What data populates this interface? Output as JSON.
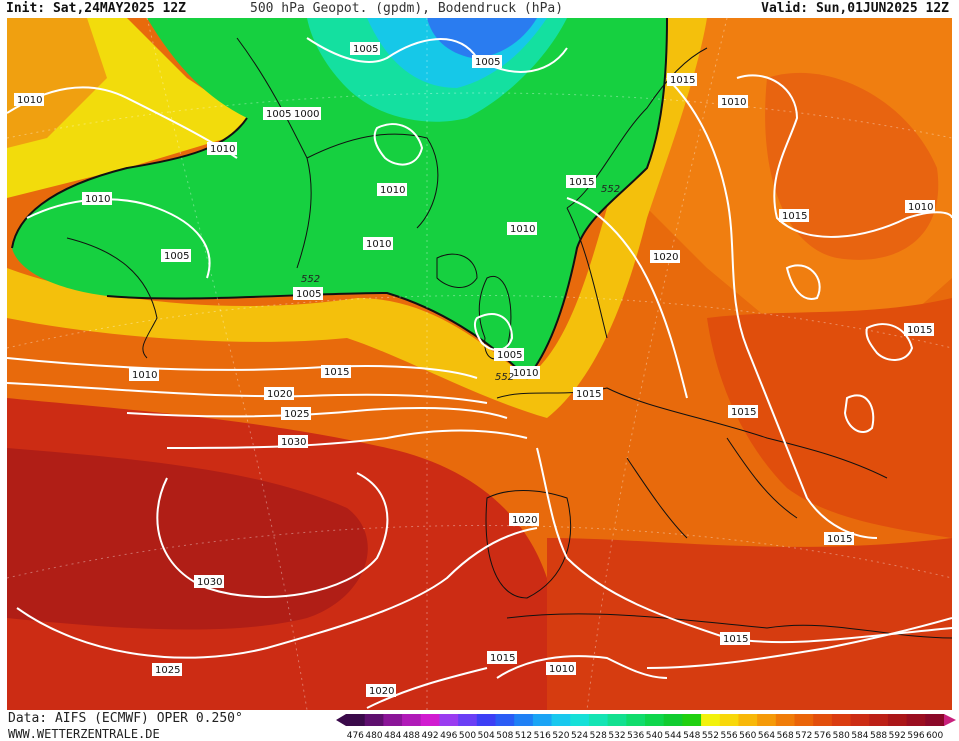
{
  "header": {
    "init": "Init: Sat,24MAY2025 12Z",
    "title": "500 hPa Geopot. (gpdm), Bodendruck (hPa)",
    "valid": "Valid: Sun,01JUN2025 12Z"
  },
  "footer": {
    "source": "Data: AIFS (ECMWF) OPER 0.250°",
    "site": "WWW.WETTERZENTRALE.DE"
  },
  "scale": {
    "labels": [
      "476",
      "480",
      "484",
      "488",
      "492",
      "496",
      "500",
      "504",
      "508",
      "512",
      "516",
      "520",
      "524",
      "528",
      "532",
      "536",
      "540",
      "544",
      "548",
      "552",
      "556",
      "560",
      "564",
      "568",
      "572",
      "576",
      "580",
      "584",
      "588",
      "592",
      "596",
      "600"
    ],
    "colors": [
      "#3a0a4a",
      "#5e0f6e",
      "#8a1598",
      "#b01ab8",
      "#d11bd0",
      "#9a3cf0",
      "#6a3ef5",
      "#3c3ef5",
      "#2a5cf5",
      "#1f80f5",
      "#1aa4f5",
      "#18c8ee",
      "#16e0d8",
      "#14e4b4",
      "#12e090",
      "#10dc6c",
      "#0ed64c",
      "#10cc30",
      "#20d010",
      "#f2f20c",
      "#f8d80a",
      "#f8b808",
      "#f59a08",
      "#f07c08",
      "#ea6408",
      "#e24e0c",
      "#da3c10",
      "#cc2c14",
      "#bc2016",
      "#aa1618",
      "#9a0e20",
      "#8a0828"
    ]
  },
  "isobars": [
    {
      "label": "1005",
      "pos": "top-left-greenland"
    },
    {
      "label": "1005",
      "pos": "top-center"
    },
    {
      "label": "1015",
      "pos": "norway-north"
    },
    {
      "label": "1010",
      "pos": "scandinavia-east"
    },
    {
      "label": "1010",
      "pos": "west-atlantic"
    },
    {
      "label": "1005",
      "pos": "greenland-south"
    },
    {
      "label": "1000",
      "pos": "greenland-south"
    },
    {
      "label": "1010",
      "pos": "greenland-west"
    },
    {
      "label": "1010",
      "pos": "iceland"
    },
    {
      "label": "1015",
      "pos": "norway-coast"
    },
    {
      "label": "1015",
      "pos": "russia-north"
    },
    {
      "label": "1010",
      "pos": "russia-northeast"
    },
    {
      "label": "1010",
      "pos": "labrador"
    },
    {
      "label": "1005",
      "pos": "labrador-south"
    },
    {
      "label": "1010",
      "pos": "north-sea"
    },
    {
      "label": "1010",
      "pos": "iceland-south"
    },
    {
      "label": "1020",
      "pos": "baltic"
    },
    {
      "label": "1005",
      "pos": "atlantic-west"
    },
    {
      "label": "1015",
      "pos": "caspian"
    },
    {
      "label": "1005",
      "pos": "british-isles"
    },
    {
      "label": "1010",
      "pos": "denmark"
    },
    {
      "label": "1010",
      "pos": "atlantic"
    },
    {
      "label": "1015",
      "pos": "atlantic"
    },
    {
      "label": "1015",
      "pos": "benelux"
    },
    {
      "label": "1020",
      "pos": "atlantic"
    },
    {
      "label": "1025",
      "pos": "atlantic"
    },
    {
      "label": "1015",
      "pos": "balkans"
    },
    {
      "label": "1030",
      "pos": "azores"
    },
    {
      "label": "1020",
      "pos": "iberia-north"
    },
    {
      "label": "1015",
      "pos": "turkey"
    },
    {
      "label": "1030",
      "pos": "azores-south"
    },
    {
      "label": "1015",
      "pos": "mediterranean-east"
    },
    {
      "label": "1015",
      "pos": "africa-north"
    },
    {
      "label": "1025",
      "pos": "atlantic-south"
    },
    {
      "label": "1010",
      "pos": "sahara"
    },
    {
      "label": "1020",
      "pos": "morocco"
    }
  ],
  "geopot_labels": [
    "552",
    "552",
    "552"
  ]
}
